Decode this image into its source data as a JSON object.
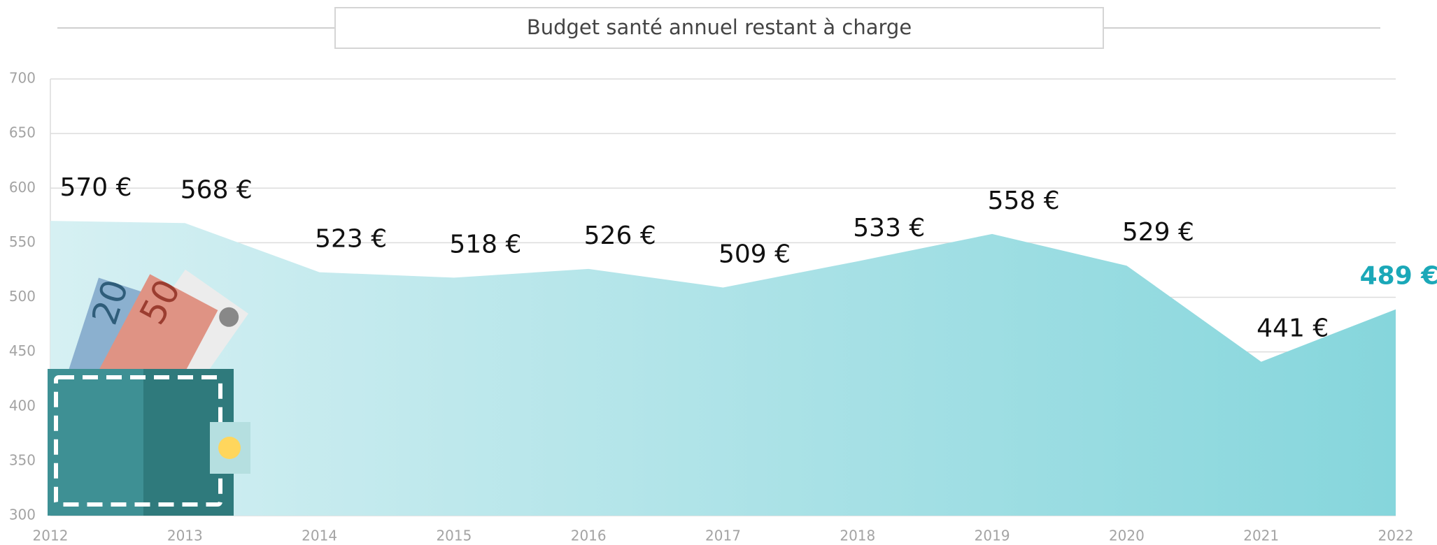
{
  "chart_data": {
    "type": "area",
    "title": "Budget santé annuel restant à charge",
    "x": [
      2012,
      2013,
      2014,
      2015,
      2016,
      2017,
      2018,
      2019,
      2020,
      2021,
      2022
    ],
    "series": [
      {
        "colors": [
          "#d6f0f3",
          "#86d6dc"
        ],
        "values": [
          570,
          568,
          523,
          518,
          526,
          509,
          533,
          558,
          529,
          441,
          489
        ],
        "value_labels": [
          "570 €",
          "568 €",
          "523 €",
          "518 €",
          "526 €",
          "509 €",
          "533 €",
          "558 €",
          "529 €",
          "441 €",
          "489 €"
        ]
      }
    ],
    "highlight_color": "#1ba8b8",
    "xlim": [
      2012,
      2022
    ],
    "xticks": [
      2012,
      2013,
      2014,
      2015,
      2016,
      2017,
      2018,
      2019,
      2020,
      2021,
      2022
    ],
    "ylim": [
      300,
      700
    ],
    "yticks": [
      300,
      350,
      400,
      450,
      500,
      550,
      600,
      650,
      700
    ],
    "grid": true
  }
}
